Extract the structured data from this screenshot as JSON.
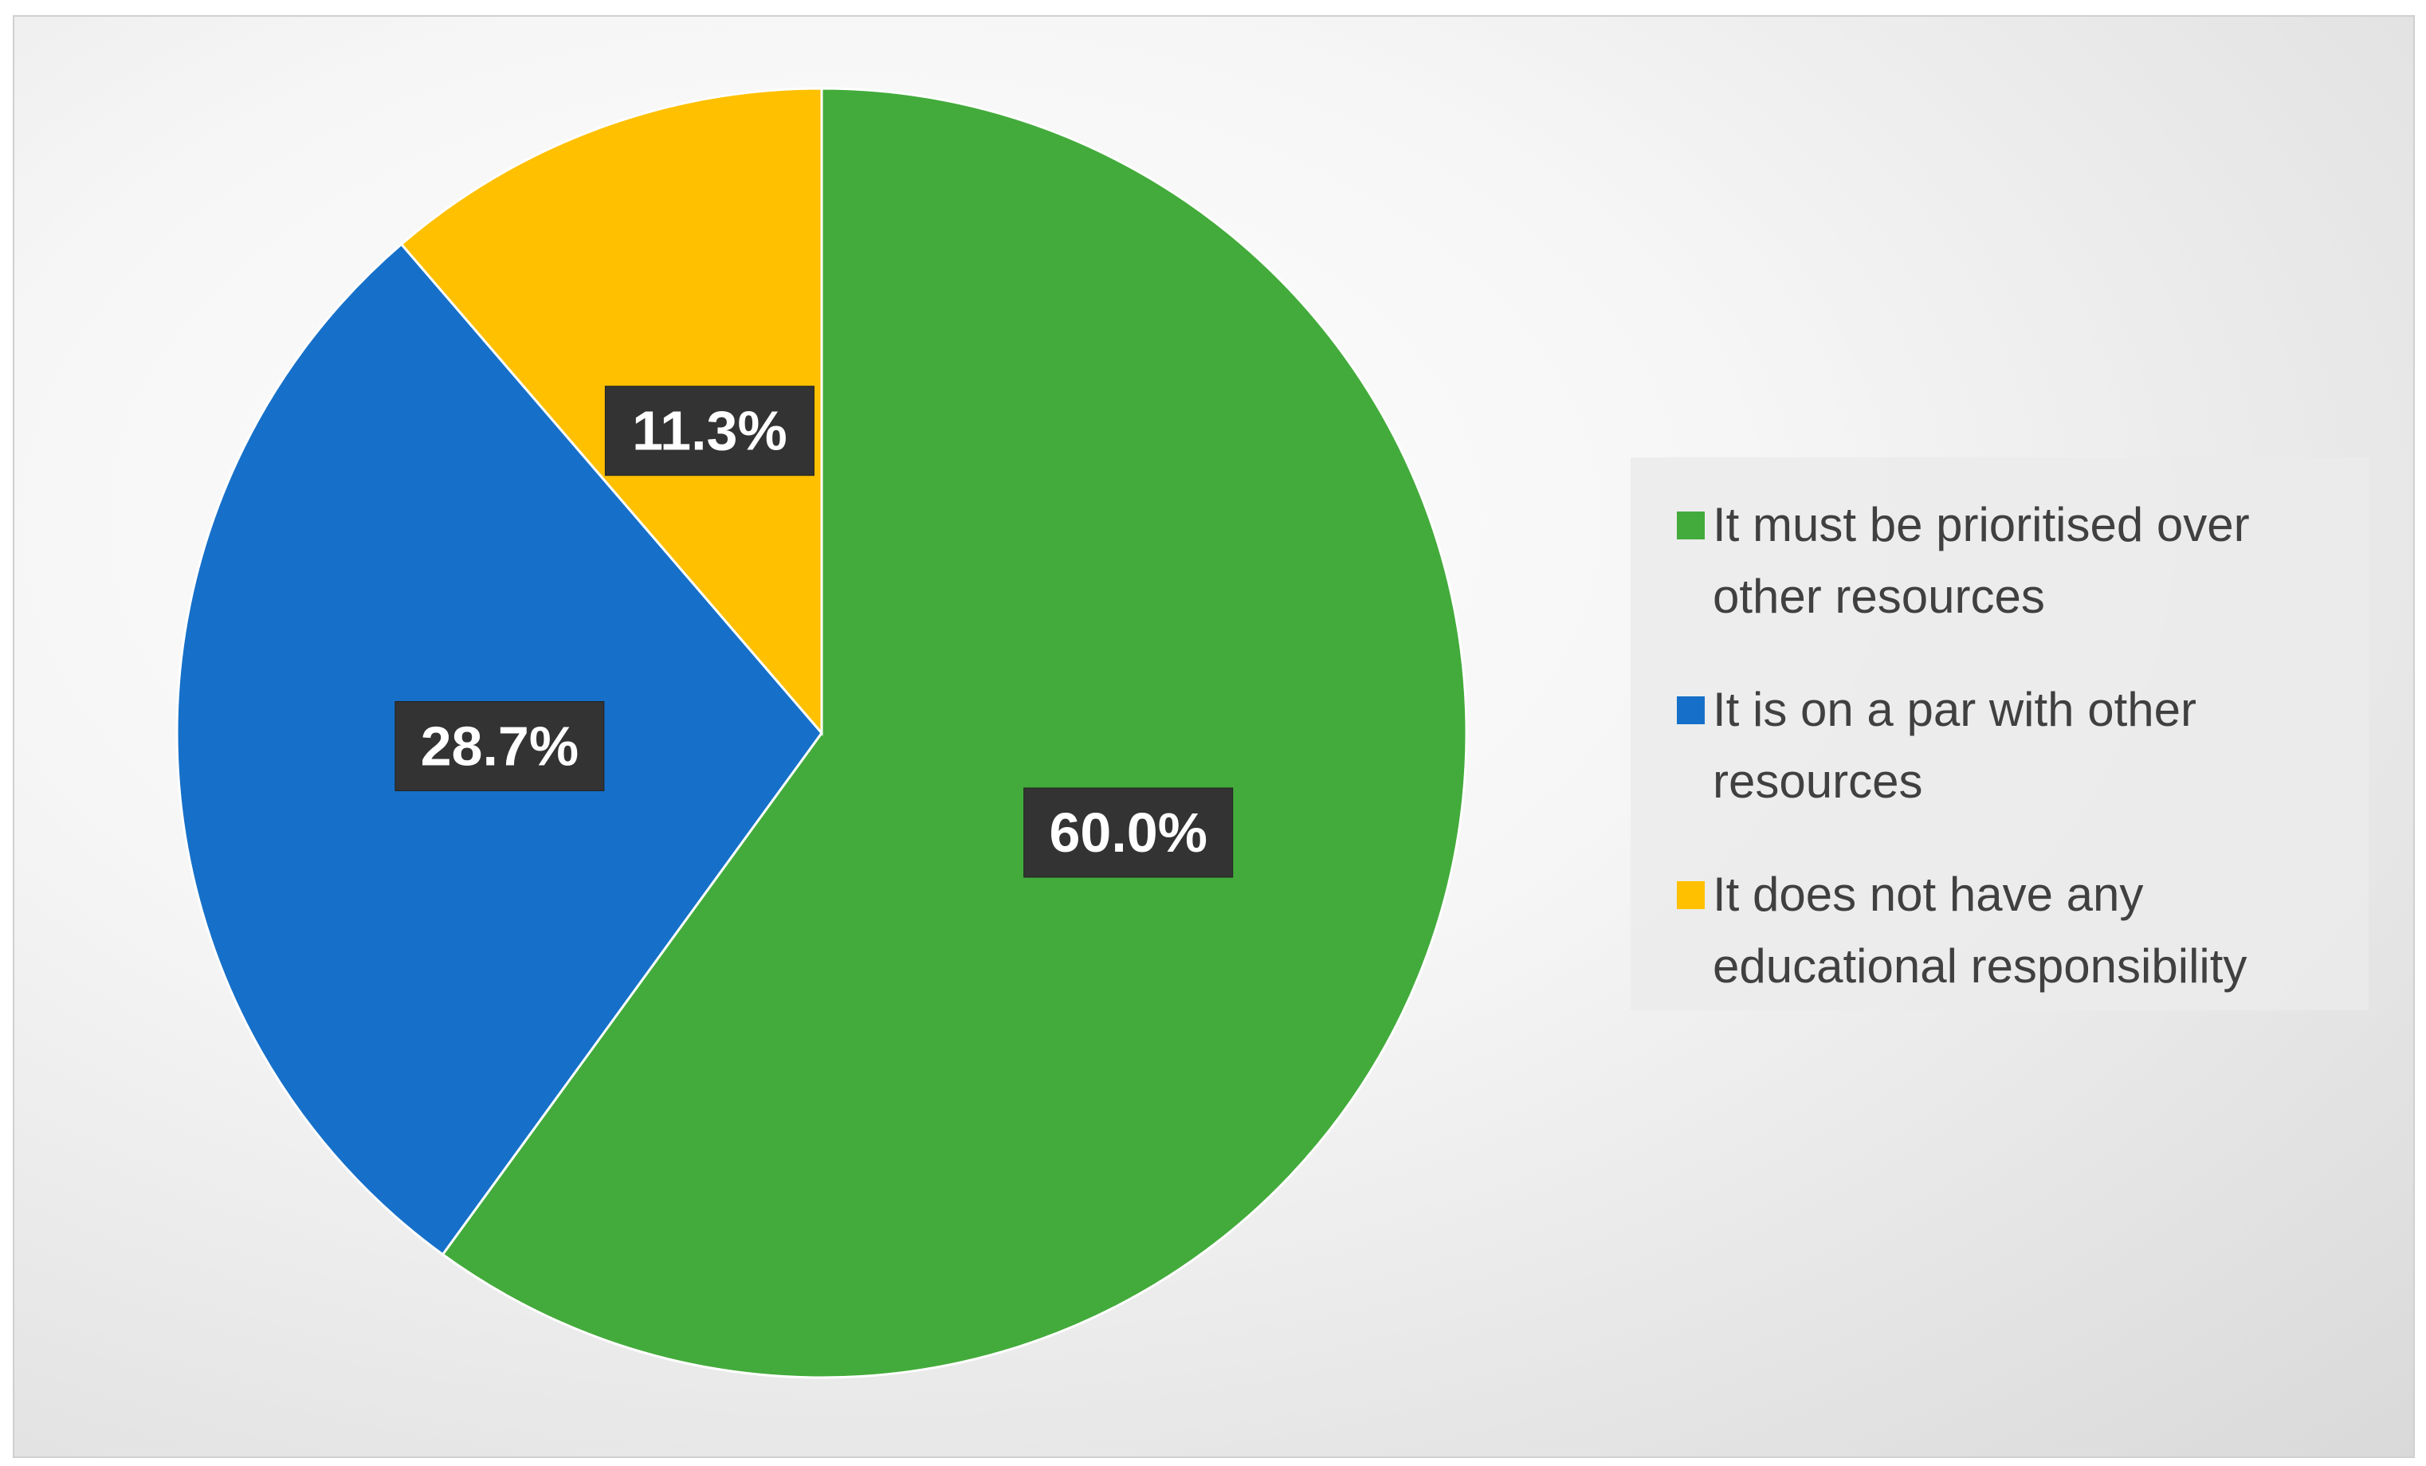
{
  "chart_data": {
    "type": "pie",
    "categories": [
      "It must be prioritised over other resources",
      "It is on a par with other resources",
      "It does not have any educational responsibility"
    ],
    "values": [
      60.0,
      28.7,
      11.3
    ],
    "value_labels": [
      "60.0%",
      "28.7%",
      "11.3%"
    ],
    "colors": [
      "#43ab3b",
      "#1670c9",
      "#ffc000"
    ],
    "legend": "right"
  }
}
